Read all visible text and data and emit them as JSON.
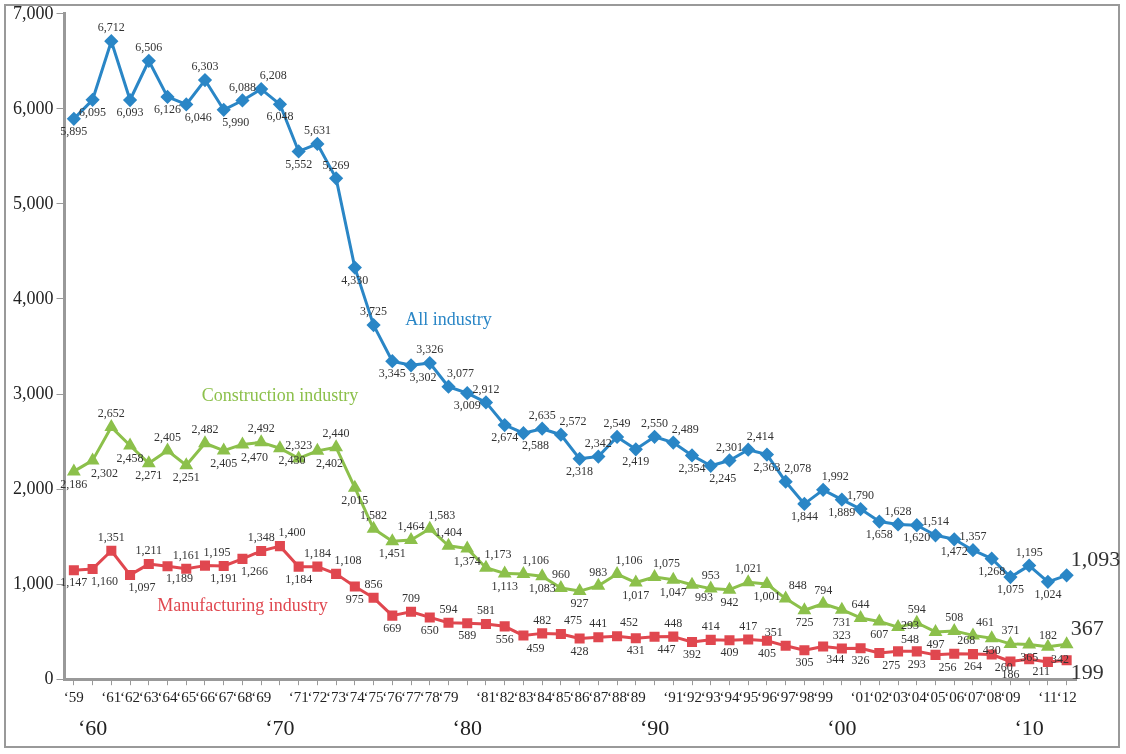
{
  "chart_data": {
    "type": "line",
    "categories": [
      "‘59",
      "‘60",
      "‘61",
      "‘62",
      "‘63",
      "‘64",
      "‘65",
      "‘66",
      "‘67",
      "‘68",
      "‘69",
      "‘70",
      "‘71",
      "‘72",
      "‘73",
      "‘74",
      "‘75",
      "‘76",
      "‘77",
      "‘78",
      "‘79",
      "‘80",
      "‘81",
      "‘82",
      "‘83",
      "‘84",
      "‘85",
      "‘86",
      "‘87",
      "‘88",
      "‘89",
      "‘90",
      "‘91",
      "‘92",
      "‘93",
      "‘94",
      "‘95",
      "‘96",
      "‘97",
      "‘98",
      "‘99",
      "‘00",
      "‘01",
      "‘02",
      "‘03",
      "‘04",
      "‘05",
      "‘06",
      "‘07",
      "‘08",
      "‘09",
      "‘10",
      "‘11",
      "‘12"
    ],
    "series": [
      {
        "name": "All industry",
        "color": "#2a86c6",
        "marker": "diamond",
        "values": [
          5895,
          6095,
          6712,
          6093,
          6506,
          6126,
          6046,
          6303,
          5990,
          6088,
          6208,
          6048,
          5552,
          5631,
          5269,
          4330,
          3725,
          3345,
          3302,
          3326,
          3077,
          3009,
          2912,
          2674,
          2588,
          2635,
          2572,
          2318,
          2342,
          2549,
          2419,
          2550,
          2489,
          2354,
          2245,
          2301,
          2414,
          2363,
          2078,
          1844,
          1992,
          1889,
          1790,
          1658,
          1628,
          1620,
          1514,
          1472,
          1357,
          1268,
          1075,
          1195,
          1024,
          1093
        ],
        "value_labels": [
          "5,895",
          "6,095",
          "6,712",
          "6,093",
          "6,506",
          "6,126",
          "6,046",
          "6,303",
          "5,990",
          "6,088",
          "6,208",
          "6,048",
          "5,552",
          "5,631",
          "5,269",
          "4,330",
          "3,725",
          "3,345",
          "3,302",
          "3,326",
          "3,077",
          "3,009",
          "2,912",
          "2,674",
          "2,588",
          "2,635",
          "2,572",
          "2,318",
          "2,342",
          "2,549",
          "2,419",
          "2,550",
          "2,489",
          "2,354",
          "2,245",
          "2,301",
          "2,414",
          "2,363",
          "2,078",
          "1,844",
          "1,992",
          "1,889",
          "1,790",
          "1,658",
          "1,628",
          "1,620",
          "1,514",
          "1,472",
          "1,357",
          "1,268",
          "1,075",
          "1,195",
          "1,024",
          "1,093"
        ]
      },
      {
        "name": "Construction industry",
        "color": "#8cc04b",
        "marker": "triangle",
        "values": [
          2186,
          2302,
          2652,
          2458,
          2271,
          2405,
          2251,
          2482,
          2405,
          2470,
          2492,
          2430,
          2323,
          2402,
          2440,
          2015,
          1582,
          1451,
          1464,
          1583,
          1404,
          1374,
          1173,
          1113,
          1106,
          1083,
          960,
          927,
          983,
          1106,
          1017,
          1075,
          1047,
          993,
          953,
          942,
          1021,
          1001,
          848,
          725,
          794,
          731,
          644,
          607,
          548,
          594,
          497,
          508,
          461,
          430,
          371,
          365,
          342,
          367
        ],
        "value_labels": [
          "2,186",
          "2,302",
          "2,652",
          "2,458",
          "2,271",
          "2,405",
          "2,251",
          "2,482",
          "2,405",
          "2,470",
          "2,492",
          "2,430",
          "2,323",
          "2,402",
          "2,440",
          "2,015",
          "1,582",
          "1,451",
          "1,464",
          "1,583",
          "1,404",
          "1,374",
          "1,173",
          "1,113",
          "1,106",
          "1,083",
          "960",
          "927",
          "983",
          "1,106",
          "1,017",
          "1,075",
          "1,047",
          "993",
          "953",
          "942",
          "1,021",
          "1,001",
          "848",
          "725",
          "794",
          "731",
          "644",
          "607",
          "548",
          "594",
          "497",
          "508",
          "461",
          "430",
          "371",
          "365",
          "342",
          "367"
        ]
      },
      {
        "name": "Manufacturing industry",
        "color": "#e0474f",
        "marker": "square",
        "values": [
          1147,
          1160,
          1351,
          1097,
          1211,
          1189,
          1161,
          1195,
          1191,
          1266,
          1348,
          1400,
          1184,
          1184,
          1108,
          975,
          856,
          669,
          709,
          650,
          594,
          589,
          581,
          556,
          459,
          482,
          475,
          428,
          441,
          452,
          431,
          447,
          448,
          392,
          414,
          409,
          417,
          405,
          351,
          305,
          344,
          323,
          326,
          275,
          293,
          293,
          256,
          268,
          264,
          260,
          186,
          211,
          182,
          199
        ],
        "value_labels": [
          "1,147",
          "1,160",
          "1,351",
          "1,097",
          "1,211",
          "1,189",
          "1,161",
          "1,195",
          "1,191",
          "1,266",
          "1,348",
          "1,400",
          "1,184",
          "1,184",
          "1,108",
          "975",
          "856",
          "669",
          "709",
          "650",
          "594",
          "589",
          "581",
          "556",
          "459",
          "482",
          "475",
          "428",
          "441",
          "452",
          "431",
          "447",
          "448",
          "392",
          "414",
          "409",
          "417",
          "405",
          "351",
          "305",
          "344",
          "323",
          "326",
          "275",
          "293",
          "293",
          "256",
          "268",
          "264",
          "260",
          "186",
          "211",
          "182",
          "199"
        ]
      }
    ],
    "ylim": [
      0,
      7000
    ],
    "yticks": [
      {
        "value": 0,
        "label": "0"
      },
      {
        "value": 1000,
        "label": "1,000"
      },
      {
        "value": 2000,
        "label": "2,000"
      },
      {
        "value": 3000,
        "label": "3,000"
      },
      {
        "value": 4000,
        "label": "4,000"
      },
      {
        "value": 5000,
        "label": "5,000"
      },
      {
        "value": 6000,
        "label": "6,000"
      },
      {
        "value": 7000,
        "label": "7,000"
      }
    ],
    "grid": false,
    "legend": false,
    "data_labels": true,
    "line_style": "solid"
  }
}
